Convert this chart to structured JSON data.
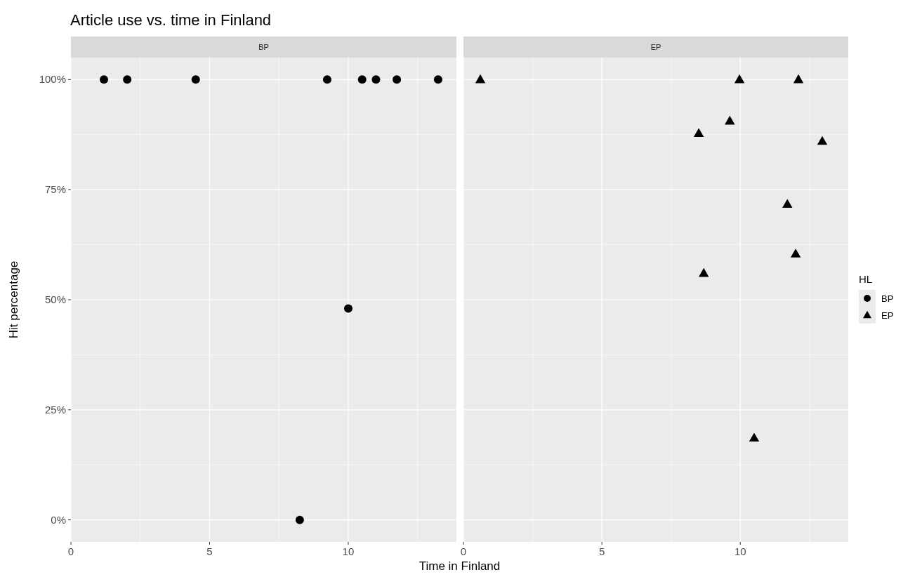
{
  "chart_data": [
    {
      "type": "scatter",
      "title": "Article use vs. time in Finland",
      "subtitle": "BP",
      "xlabel": "Time in Finland",
      "ylabel": "Hit percentage",
      "marker": "circle",
      "grid": true,
      "xlim": [
        0,
        13.9
      ],
      "xticks": [
        0,
        {
          "value": 2.5,
          "label": null
        },
        5,
        {
          "value": 7.5,
          "label": null
        },
        10,
        {
          "value": 12.5,
          "label": null
        }
      ],
      "ylim": [
        -5,
        105
      ],
      "yticks": [
        {
          "value": 0,
          "label": "0%"
        },
        {
          "value": 12.5,
          "label": null
        },
        {
          "value": 25,
          "label": "25%"
        },
        {
          "value": 37.5,
          "label": null
        },
        {
          "value": 50,
          "label": "50%"
        },
        {
          "value": 62.5,
          "label": null
        },
        {
          "value": 75,
          "label": "75%"
        },
        {
          "value": 87.5,
          "label": null
        },
        {
          "value": 100,
          "label": "100%"
        }
      ],
      "series": [
        {
          "name": "BP",
          "color": "#000000",
          "x": [
            1.19,
            2.03,
            4.5,
            9.24,
            10.5,
            11.0,
            11.75,
            13.24,
            10.0,
            8.25
          ],
          "values": [
            100,
            100,
            100,
            100,
            100,
            100,
            100,
            100,
            48,
            0
          ]
        }
      ]
    },
    {
      "type": "scatter",
      "subtitle": "EP",
      "marker": "triangle",
      "grid": true,
      "legend": "right",
      "legend_title": "HL",
      "tick_labels": "x",
      "xlim": [
        0,
        13.9
      ],
      "xticks": [
        0,
        {
          "value": 2.5,
          "label": null
        },
        5,
        {
          "value": 7.5,
          "label": null
        },
        10,
        {
          "value": 12.5,
          "label": null
        }
      ],
      "ylim": [
        -5,
        105
      ],
      "series": [
        {
          "name": "EP",
          "color": "#000000",
          "x": [
            0.61,
            9.97,
            12.1,
            8.5,
            9.62,
            12.96,
            11.7,
            12.0,
            8.68,
            10.5
          ],
          "values": [
            100,
            100,
            100,
            87.8,
            90.6,
            86.0,
            71.7,
            60.4,
            56.0,
            18.6
          ]
        }
      ]
    }
  ]
}
